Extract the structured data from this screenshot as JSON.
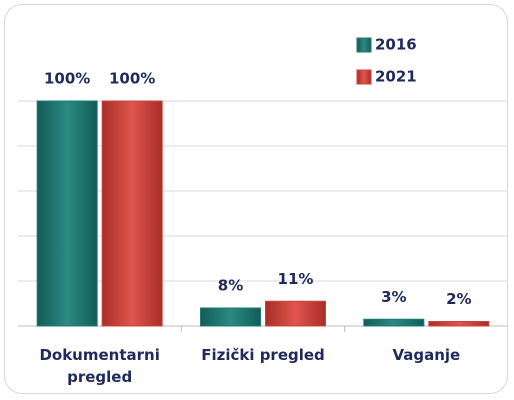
{
  "chart_data": {
    "type": "bar",
    "categories": [
      "Dokumentarni pregled",
      "Fizički pregled",
      "Vaganje"
    ],
    "series": [
      {
        "name": "2016",
        "color": "#1f7a73",
        "values": [
          100,
          8,
          3
        ],
        "value_labels": [
          "100%",
          "8%",
          "3%"
        ]
      },
      {
        "name": "2021",
        "color": "#d0413b",
        "values": [
          100,
          11,
          2
        ],
        "value_labels": [
          "100%",
          "11%",
          "2%"
        ]
      }
    ],
    "ylim": [
      0,
      100
    ],
    "yticks": [
      0,
      20,
      40,
      60,
      80,
      100
    ],
    "grid": true,
    "legend": "top-right"
  }
}
